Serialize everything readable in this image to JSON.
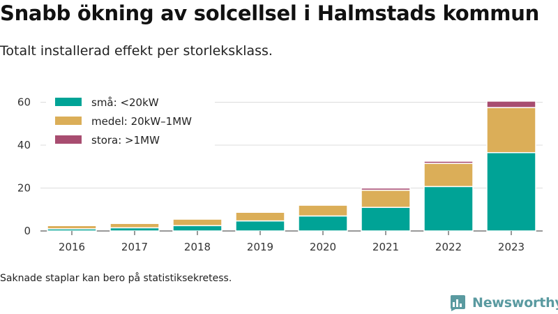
{
  "header": {
    "title": "Snabb ökning av solcellsel i Halmstads kommun",
    "subtitle": "Totalt installerad effekt per storleksklass."
  },
  "footer": {
    "note": "Saknade staplar kan bero på statistiksekretess.",
    "brand": "Newsworthy",
    "brand_icon": "bar-chart-speech-bubble-icon"
  },
  "chart_data": {
    "type": "bar",
    "stacked": true,
    "categories": [
      "2016",
      "2017",
      "2018",
      "2019",
      "2020",
      "2021",
      "2022",
      "2023"
    ],
    "series": [
      {
        "name": "små: <20kW",
        "color": "#00a396",
        "values": [
          1.0,
          1.5,
          2.5,
          4.7,
          7.0,
          11.0,
          20.7,
          36.5
        ]
      },
      {
        "name": "medel: 20kW–1MW",
        "color": "#dbae58",
        "values": [
          1.5,
          2.0,
          3.0,
          4.0,
          5.0,
          8.0,
          10.8,
          21.0
        ]
      },
      {
        "name": "stora: >1MW",
        "color": "#a84d70",
        "values": [
          null,
          null,
          null,
          null,
          null,
          1.0,
          1.0,
          3.0
        ]
      }
    ],
    "yticks": [
      0,
      20,
      40,
      60
    ],
    "ylim": [
      0,
      66
    ],
    "grid": true,
    "legend_position": "top-left"
  }
}
